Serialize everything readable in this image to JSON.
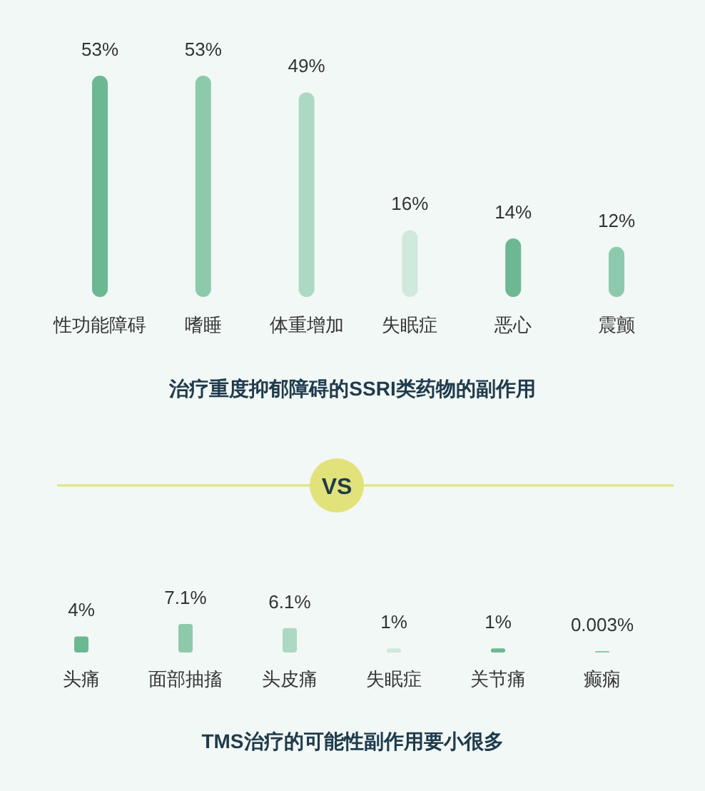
{
  "chart_data": [
    {
      "type": "bar",
      "title": "治疗重度抑郁障碍的SSRI类药物的副作用",
      "categories": [
        "性功能障碍",
        "嗜睡",
        "体重增加",
        "失眠症",
        "恶心",
        "震颤"
      ],
      "values": [
        53,
        53,
        49,
        16,
        14,
        12
      ],
      "value_labels": [
        "53%",
        "53%",
        "49%",
        "16%",
        "14%",
        "12%"
      ],
      "colors": [
        "#6cb892",
        "#8dcaab",
        "#acd9c3",
        "#cfe9dc",
        "#6cb892",
        "#8dcaab"
      ]
    },
    {
      "type": "bar",
      "title": "TMS治疗的可能性副作用要小很多",
      "annotations": [
        "VS"
      ],
      "categories": [
        "头痛",
        "面部抽搐",
        "头皮痛",
        "失眠症",
        "关节痛",
        "癫痫"
      ],
      "values": [
        4,
        7.1,
        6.1,
        1,
        1,
        0.003
      ],
      "value_labels": [
        "4%",
        "7.1%",
        "6.1%",
        "1%",
        "1%",
        "0.003%"
      ],
      "colors": [
        "#6cb892",
        "#8dcaab",
        "#acd9c3",
        "#cfe9dc",
        "#6cb892",
        "#8dcaab"
      ]
    }
  ]
}
